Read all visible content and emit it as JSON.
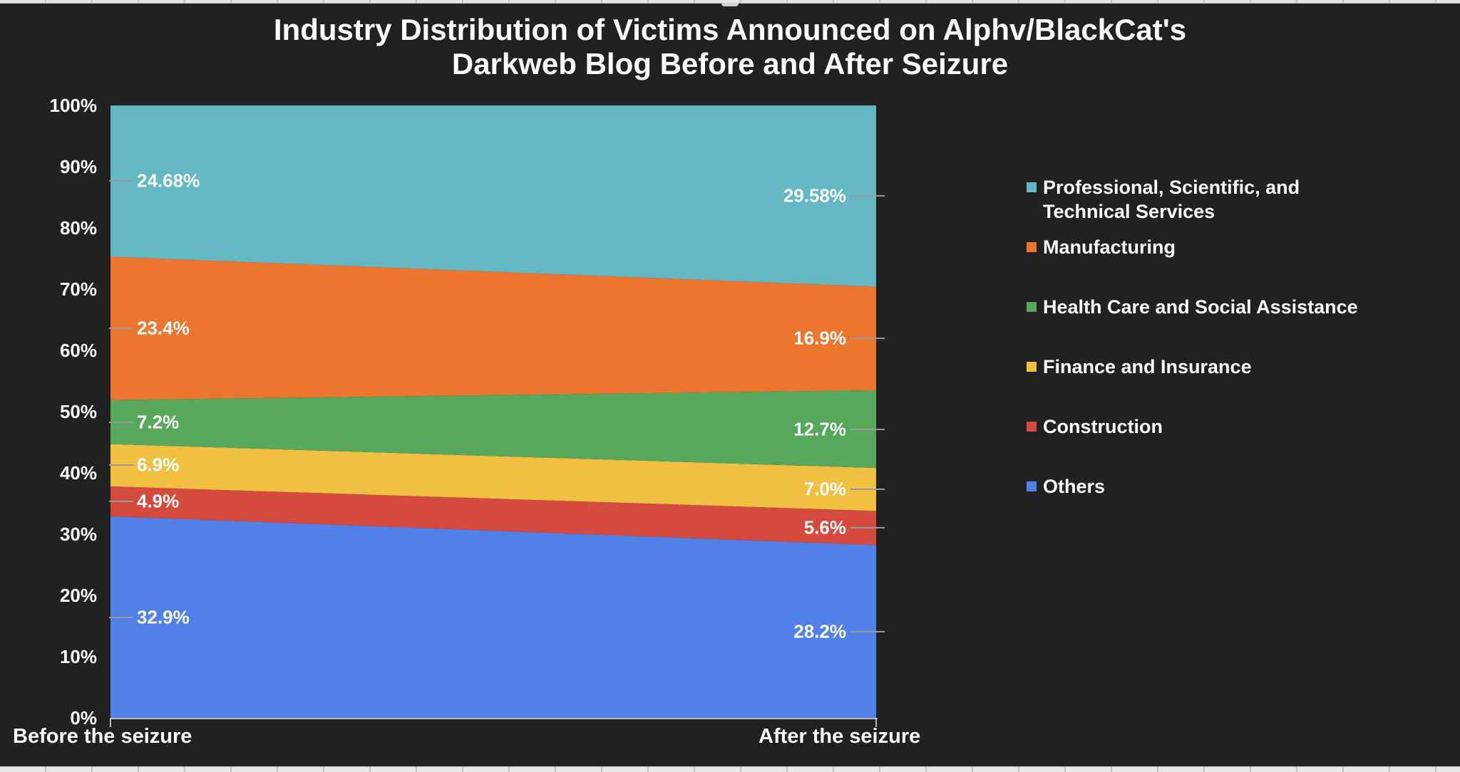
{
  "chart": {
    "title_line1": "Industry Distribution of Victims Announced on Alphv/BlackCat's",
    "title_line2": "Darkweb Blog Before and After Seizure",
    "background_color": "#212121",
    "text_color": "#ffffff",
    "axis_line_color": "#b7b7b7",
    "leader_line_color": "#999999"
  },
  "chart_data": {
    "type": "area",
    "stacked": "percent",
    "title": "Industry Distribution of Victims Announced on Alphv/BlackCat's Darkweb Blog Before and After Seizure",
    "x_categories": [
      "Before the seizure",
      "After the seizure"
    ],
    "y_ticks": [
      "0%",
      "10%",
      "20%",
      "30%",
      "40%",
      "50%",
      "60%",
      "70%",
      "80%",
      "90%",
      "100%"
    ],
    "ylim": [
      0,
      100
    ],
    "grid": false,
    "legend_position": "right",
    "series": [
      {
        "name": "Others",
        "color": "#5180E8",
        "values": [
          32.9,
          28.2
        ],
        "labels": [
          "32.9%",
          "28.2%"
        ]
      },
      {
        "name": "Construction",
        "color": "#D44A3E",
        "values": [
          4.9,
          5.6
        ],
        "labels": [
          "4.9%",
          "5.6%"
        ]
      },
      {
        "name": "Finance and Insurance",
        "color": "#F1BF42",
        "values": [
          6.9,
          7.0
        ],
        "labels": [
          "6.9%",
          "7.0%"
        ]
      },
      {
        "name": "Health Care and Social Assistance",
        "color": "#57A75D",
        "values": [
          7.2,
          12.7
        ],
        "labels": [
          "7.2%",
          "12.7%"
        ]
      },
      {
        "name": "Manufacturing",
        "color": "#EC7630",
        "values": [
          23.4,
          16.9
        ],
        "labels": [
          "23.4%",
          "16.9%"
        ]
      },
      {
        "name": "Professional, Scientific, and Technical Services",
        "color": "#63B8C3",
        "values": [
          24.68,
          29.58
        ],
        "labels": [
          "24.68%",
          "29.58%"
        ]
      }
    ],
    "legend_order_note": "legend listed top-to-bottom is the reverse of the stack order above"
  }
}
